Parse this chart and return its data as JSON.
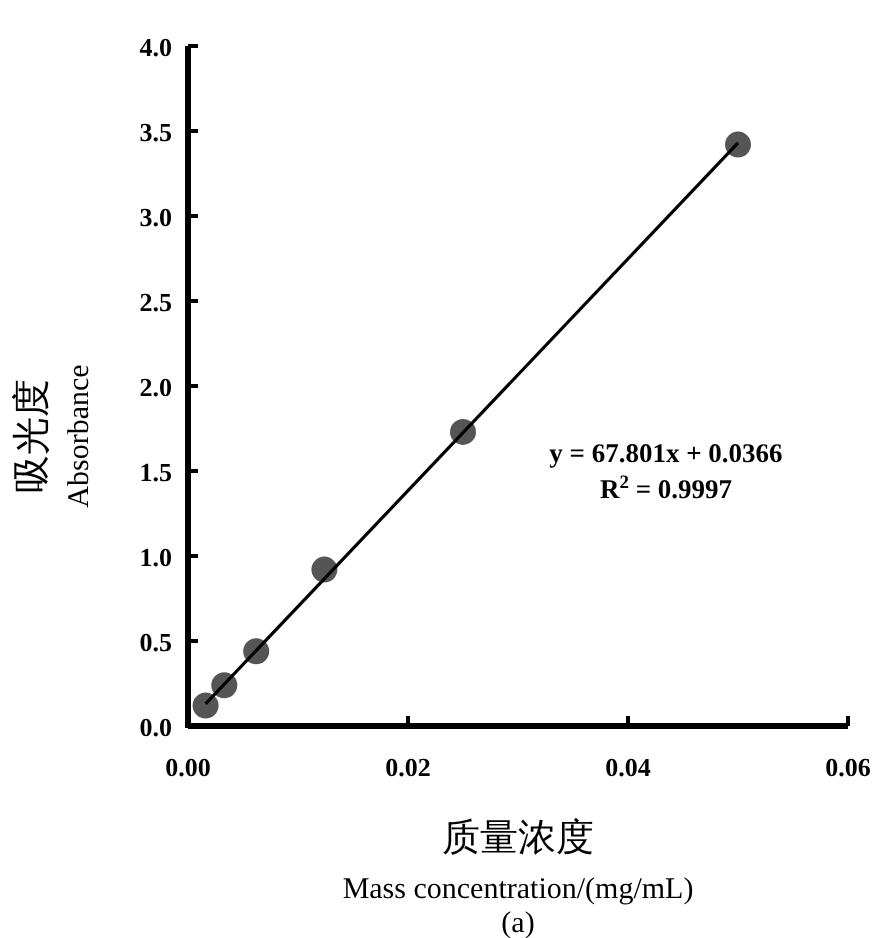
{
  "chart_data": {
    "type": "scatter",
    "xlabel": "质量浓度\nMass concentration/(mg/mL)",
    "ylabel": "吸光度\nAbsorbance",
    "series": [
      {
        "type": "scatter",
        "color": "#555555",
        "marker": "circle",
        "x": [
          0.0016,
          0.0033,
          0.0062,
          0.0124,
          0.025,
          0.05
        ],
        "values": [
          0.12,
          0.24,
          0.44,
          0.92,
          1.73,
          3.42
        ]
      },
      {
        "type": "line",
        "color": "#000000",
        "line_style": "solid",
        "marker": "none",
        "x": [
          0.0016,
          0.05
        ],
        "values": [
          0.13,
          3.43
        ]
      }
    ],
    "xlim": [
      0,
      0.06
    ],
    "ylim": [
      0,
      4
    ],
    "xticks": [
      {
        "value": 0,
        "label": "0.00"
      },
      0.02,
      0.04,
      0.06
    ],
    "yticks": [
      {
        "value": 0,
        "label": "0.0"
      },
      0.5,
      {
        "value": 1,
        "label": "1.0"
      },
      1.5,
      {
        "value": 2,
        "label": "2.0"
      },
      2.5,
      {
        "value": 3,
        "label": "3.0"
      },
      3.5,
      {
        "value": 4,
        "label": "4.0"
      }
    ],
    "grid": false,
    "annotations": [
      "y = 67.801x + 0.0366",
      "R$^{2}$ = 0.9997",
      "(a)"
    ]
  }
}
